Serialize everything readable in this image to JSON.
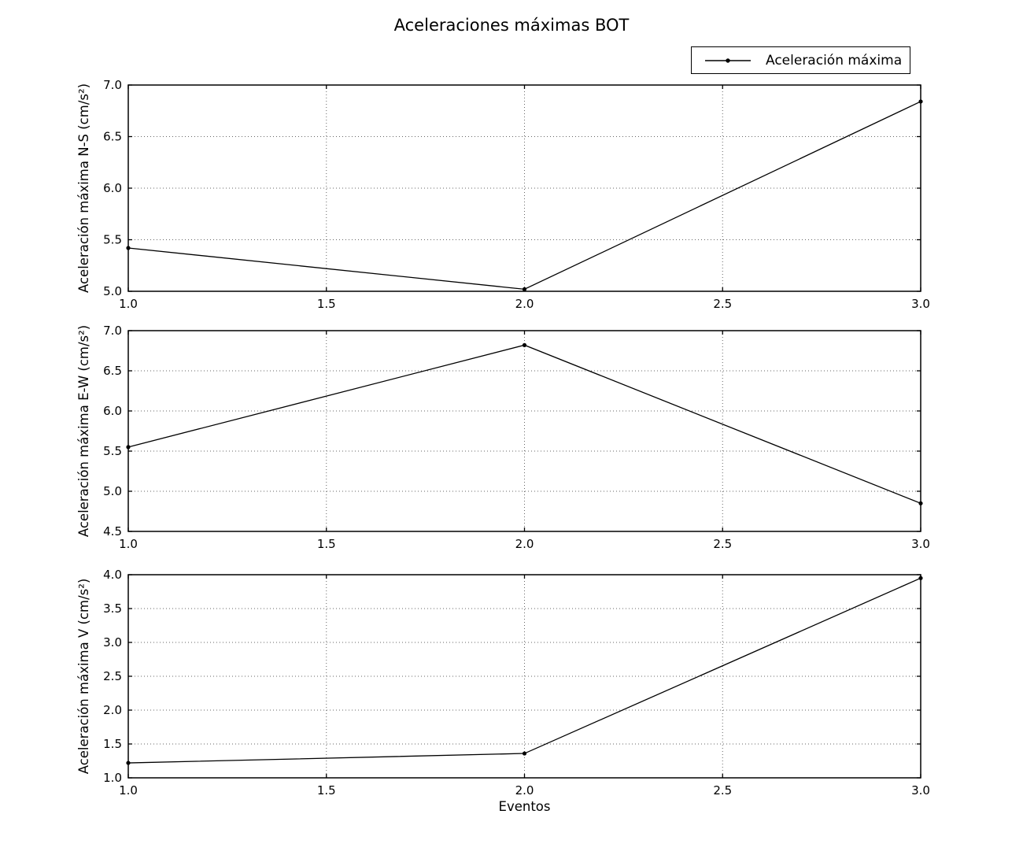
{
  "title": "Aceleraciones máximas BOT",
  "legend": {
    "label": "Aceleración máxima",
    "marker": "dot-on-line-icon"
  },
  "colors": {
    "line": "#000000",
    "marker": "#000000",
    "grid": "#666666",
    "frame": "#000000",
    "text": "#000000",
    "background": "#ffffff"
  },
  "chart_data": [
    {
      "type": "line",
      "x": [
        1.0,
        2.0,
        3.0
      ],
      "series": [
        {
          "name": "Aceleración máxima",
          "values": [
            5.42,
            5.02,
            6.84
          ]
        }
      ],
      "ylabel": "Aceleración máxima N-S (cm/s²)",
      "xlabel": "",
      "xlim": [
        1.0,
        3.0
      ],
      "ylim": [
        5.0,
        7.0
      ],
      "xticks": [
        1.0,
        1.5,
        2.0,
        2.5,
        3.0
      ],
      "yticks": [
        5.0,
        5.5,
        6.0,
        6.5,
        7.0
      ],
      "grid": true,
      "legend_position": "above-figure-right"
    },
    {
      "type": "line",
      "x": [
        1.0,
        2.0,
        3.0
      ],
      "series": [
        {
          "name": "Aceleración máxima",
          "values": [
            5.55,
            6.82,
            4.85
          ]
        }
      ],
      "ylabel": "Aceleración máxima E-W (cm/s²)",
      "xlabel": "",
      "xlim": [
        1.0,
        3.0
      ],
      "ylim": [
        4.5,
        7.0
      ],
      "xticks": [
        1.0,
        1.5,
        2.0,
        2.5,
        3.0
      ],
      "yticks": [
        4.5,
        5.0,
        5.5,
        6.0,
        6.5,
        7.0
      ],
      "grid": true
    },
    {
      "type": "line",
      "x": [
        1.0,
        2.0,
        3.0
      ],
      "series": [
        {
          "name": "Aceleración máxima",
          "values": [
            1.22,
            1.36,
            3.95
          ]
        }
      ],
      "ylabel": "Aceleración máxima V (cm/s²)",
      "xlabel": "Eventos",
      "xlim": [
        1.0,
        3.0
      ],
      "ylim": [
        1.0,
        4.0
      ],
      "xticks": [
        1.0,
        1.5,
        2.0,
        2.5,
        3.0
      ],
      "yticks": [
        1.0,
        1.5,
        2.0,
        2.5,
        3.0,
        3.5,
        4.0
      ],
      "grid": true
    }
  ]
}
